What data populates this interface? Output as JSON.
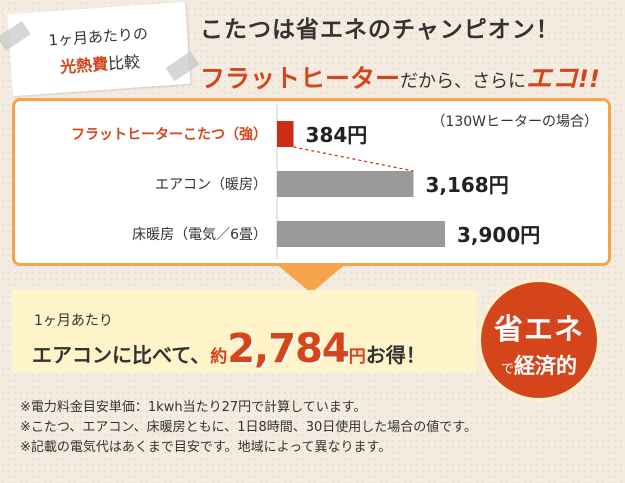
{
  "label_card": {
    "line1": "1ヶ月あたりの",
    "line2_accent": "光熱費",
    "line2_rest": "比較"
  },
  "headline": {
    "line1": "こたつは省エネのチャンピオン！",
    "product": "フラットヒーター",
    "connector": "だから、さらに",
    "eco": "エコ",
    "mark": "!!"
  },
  "chart_data": {
    "type": "bar",
    "orientation": "horizontal",
    "title": "",
    "note": "（130Wヒーターの場合）",
    "categories": [
      "フラットヒーターこたつ（強）",
      "エアコン（暖房）",
      "床暖房（電気／6畳）"
    ],
    "values": [
      384,
      3168,
      3900
    ],
    "value_labels": [
      "384円",
      "3,168円",
      "3,900円"
    ],
    "unit": "円",
    "xlim": [
      0,
      3900
    ],
    "colors": [
      "#cc2e14",
      "#9a9a9a",
      "#9a9a9a"
    ],
    "label_colors": [
      "#d4451c",
      "#333333",
      "#333333"
    ],
    "grid": false,
    "legend": "none"
  },
  "result": {
    "line1": "1ヶ月あたり",
    "prefix": "エアコンに比べて、",
    "approx": "約",
    "amount": "2,784",
    "unit": "円",
    "suffix": "お得！"
  },
  "seal": {
    "line1": "省エネ",
    "de": "で",
    "line2": "経済的"
  },
  "notes": [
    "※電力料金目安単価：1kwh当たり27円で計算しています。",
    "※こたつ、エアコン、床暖房ともに、1日8時間、30日使用した場合の値です。",
    "※記載の電気代はあくまで目安です。地域によって異なります。"
  ],
  "colors": {
    "accent_red": "#d4451c",
    "bar_red": "#cc2e14",
    "bar_gray": "#9a9a9a",
    "border_orange": "#f5a44c",
    "result_bg": "#fef3c9",
    "page_bg": "#f4ece0"
  }
}
